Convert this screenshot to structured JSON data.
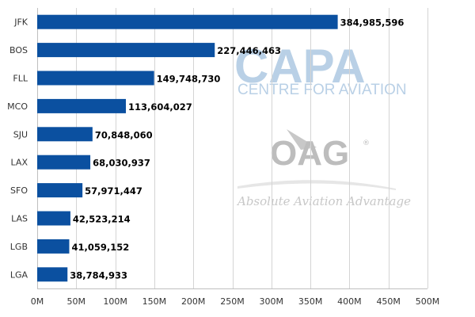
{
  "watermark": {
    "capa": "CAPA",
    "centre": "CENTRE FOR AVIATION",
    "oag": "OAG",
    "registered": "®",
    "tagline": "Absolute Aviation Advantage"
  },
  "chart_data": {
    "type": "bar",
    "orientation": "horizontal",
    "categories": [
      "JFK",
      "BOS",
      "FLL",
      "MCO",
      "SJU",
      "LAX",
      "SFO",
      "LAS",
      "LGB",
      "LGA"
    ],
    "values": [
      384985596,
      227446463,
      149748730,
      113604027,
      70848060,
      68030937,
      57971447,
      42523214,
      41059152,
      38784933
    ],
    "value_labels": [
      "384,985,596",
      "227,446,463",
      "149,748,730",
      "113,604,027",
      "70,848,060",
      "68,030,937",
      "57,971,447",
      "42,523,214",
      "41,059,152",
      "38,784,933"
    ],
    "xlim": [
      0,
      500000000
    ],
    "xticks": [
      0,
      50000000,
      100000000,
      150000000,
      200000000,
      250000000,
      300000000,
      350000000,
      400000000,
      450000000,
      500000000
    ],
    "xtick_labels": [
      "0M",
      "50M",
      "100M",
      "150M",
      "200M",
      "250M",
      "300M",
      "350M",
      "400M",
      "450M",
      "500M"
    ],
    "grid": true,
    "bar_color": "#0b50a0",
    "grid_color": "#d4d4d4",
    "title": "",
    "xlabel": "",
    "ylabel": ""
  }
}
